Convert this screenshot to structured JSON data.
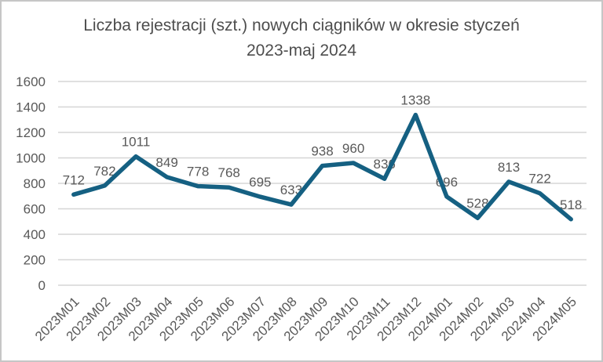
{
  "window": {
    "background": "#ffffff",
    "border_color": "#c6c6c6"
  },
  "chart_data": {
    "type": "line",
    "title": "Liczba rejestracji (szt.) nowych ciągników w okresie styczeń\n2023-maj 2024",
    "categories": [
      "2023M01",
      "2023M02",
      "2023M03",
      "2023M04",
      "2023M05",
      "2023M06",
      "2023M07",
      "2023M08",
      "2023M09",
      "2023M10",
      "2023M11",
      "2023M12",
      "2024M01",
      "2024M02",
      "2024M03",
      "2024M04",
      "2024M05"
    ],
    "values": [
      712,
      782,
      1011,
      849,
      778,
      768,
      695,
      633,
      938,
      960,
      836,
      1338,
      696,
      528,
      813,
      722,
      518
    ],
    "xlabel": "",
    "ylabel": "",
    "ylim": [
      0,
      1600
    ],
    "ytick_step": 200,
    "grid": true,
    "legend": "none",
    "show_data_labels": true,
    "series_color": "#156082",
    "label_color": "#595959",
    "grid_color": "#d6d6d6",
    "title_color": "#4d4d4d"
  }
}
